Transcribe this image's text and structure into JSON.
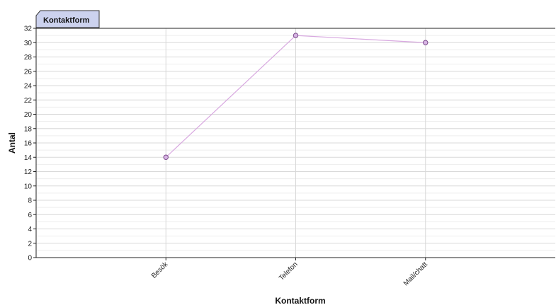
{
  "chart_data": {
    "type": "line",
    "title": "Kontaktform",
    "xlabel": "Kontaktform",
    "ylabel": "Antal",
    "categories": [
      "Besök",
      "Telefon",
      "Mail/chatt"
    ],
    "series": [
      {
        "values": [
          14,
          31,
          30
        ]
      }
    ],
    "ylim": [
      0,
      32
    ],
    "yticks": [
      0,
      2,
      4,
      6,
      8,
      10,
      12,
      14,
      16,
      18,
      20,
      22,
      24,
      26,
      28,
      30,
      32
    ],
    "grid": true,
    "legend": "none"
  },
  "colors": {
    "line": "#d8a8e0",
    "marker_fill": "#d7b4e4",
    "marker_stroke": "#7a4a8a",
    "tab_fill": "#ccd2ee",
    "grid_major": "#d8d8d8",
    "grid_minor": "#ededed"
  }
}
